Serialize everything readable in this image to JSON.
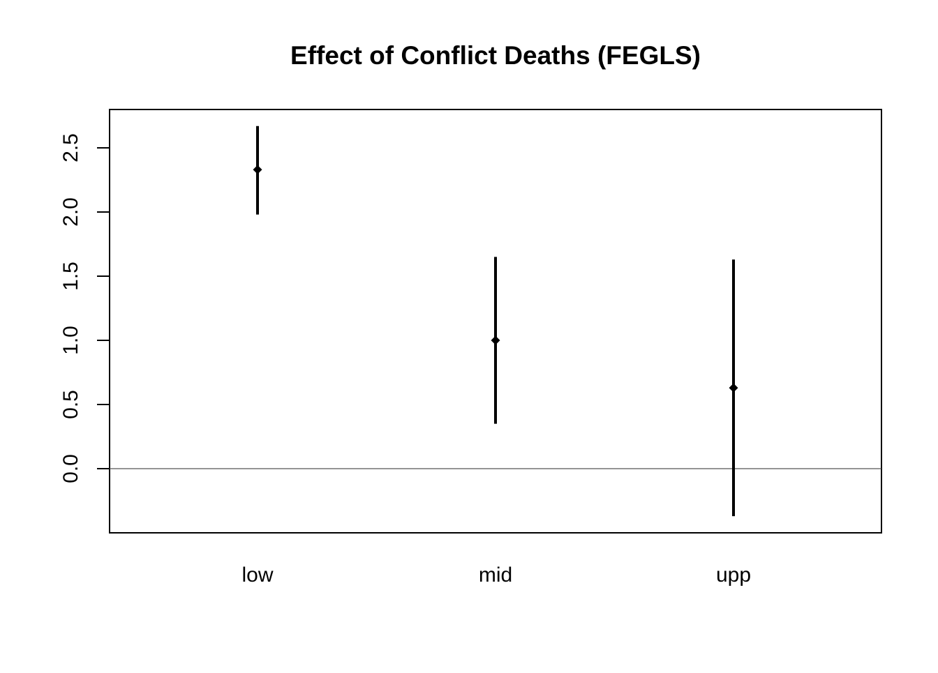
{
  "chart_data": {
    "type": "scatter",
    "title": "Effect of Conflict Deaths (FEGLS)",
    "xlabel": "",
    "ylabel": "",
    "categories": [
      "low",
      "mid",
      "upp"
    ],
    "series": [
      {
        "estimates": [
          2.33,
          1.0,
          0.63
        ],
        "lower": [
          1.98,
          0.35,
          -0.37
        ],
        "upper": [
          2.67,
          1.65,
          1.63
        ]
      }
    ],
    "y_ticks": [
      "0.0",
      "0.5",
      "1.0",
      "1.5",
      "2.0",
      "2.5"
    ],
    "ylim": [
      -0.5,
      2.8
    ],
    "reference_line": 0,
    "grid": false,
    "legend": "none",
    "colors": {
      "points": "#000000",
      "intervals": "#000000",
      "reference_line": "#555555",
      "frame": "#000000"
    }
  }
}
